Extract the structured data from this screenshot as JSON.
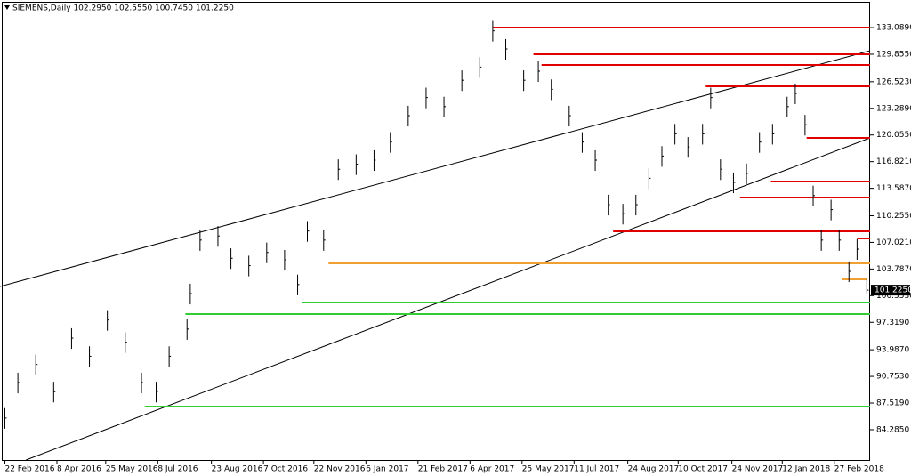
{
  "chart_data": {
    "type": "ohlc",
    "title": "SIEMENS,Daily  102.2950 102.5550 100.7450 101.2250",
    "x": [
      3,
      11,
      22,
      33,
      44,
      55,
      66,
      77,
      87,
      96,
      104,
      115,
      117,
      123,
      134,
      142,
      153,
      164,
      175,
      183,
      189,
      199,
      208,
      219,
      230,
      240,
      251,
      262,
      273,
      284,
      295,
      303,
      311,
      322,
      331,
      339,
      350,
      358,
      366,
      374,
      383,
      391,
      399,
      407,
      415,
      423,
      432,
      437,
      443,
      451,
      459,
      467,
      475,
      484,
      489,
      495,
      500,
      505,
      511,
      516,
      522,
      527,
      533
    ],
    "high": [
      86.9,
      91.2,
      93.4,
      90.1,
      96.6,
      94.4,
      98.8,
      96.1,
      91.2,
      90.1,
      94.4,
      97.7,
      102,
      108.5,
      109,
      106.3,
      105.4,
      107,
      106.1,
      103.1,
      109.6,
      108.5,
      117.1,
      117.7,
      118.2,
      120.4,
      123.6,
      125.8,
      124.7,
      127.9,
      129.5,
      133.9,
      131.7,
      127.9,
      129,
      126.8,
      123.6,
      120.4,
      118.2,
      112.8,
      111.7,
      112.8,
      116,
      118.7,
      121.4,
      119.8,
      121.4,
      125.8,
      117.1,
      115.5,
      116.6,
      120.4,
      121.4,
      124.7,
      126.3,
      122.5,
      113.9,
      108.5,
      112.2,
      108.5,
      104.7,
      107.4,
      102.555
    ],
    "low": [
      84.4,
      88.7,
      90.9,
      87.6,
      94.1,
      91.9,
      96.3,
      93.6,
      88.7,
      87.6,
      91.9,
      95.2,
      99.5,
      106,
      106.5,
      103.8,
      102.9,
      104.5,
      103.6,
      100.6,
      107.1,
      106,
      114.6,
      115.2,
      115.7,
      117.9,
      121.1,
      123.3,
      122.2,
      125.4,
      127,
      131.4,
      129.2,
      125.4,
      126.5,
      124.3,
      121.1,
      117.9,
      115.7,
      110.3,
      109.2,
      110.3,
      113.5,
      116.2,
      118.9,
      117.3,
      118.9,
      123.3,
      114.6,
      113,
      114.1,
      117.9,
      118.9,
      122.2,
      123.8,
      120,
      111.4,
      106,
      109.7,
      106,
      102.2,
      104.9,
      100.745
    ],
    "close": [
      85.7,
      90,
      92.2,
      88.9,
      95.4,
      93.2,
      97.6,
      94.9,
      90,
      88.9,
      93.2,
      96.5,
      100.8,
      107.3,
      107.8,
      105.1,
      104.2,
      105.8,
      104.9,
      101.9,
      108.4,
      107.3,
      115.9,
      116.5,
      117,
      119.2,
      122.4,
      124.6,
      123.5,
      126.7,
      128.3,
      132.7,
      130.5,
      126.7,
      127.8,
      125.6,
      122.4,
      119.2,
      117,
      111.6,
      110.5,
      111.6,
      114.8,
      117.5,
      120.2,
      118.6,
      120.2,
      124.6,
      115.9,
      114.3,
      115.4,
      119.2,
      120.2,
      123.5,
      125.1,
      121.3,
      112.7,
      107.3,
      111,
      107.3,
      103.5,
      106.2,
      101.225
    ],
    "color": "#000000",
    "xlim": [
      0,
      535
    ],
    "ylim": [
      80.61,
      136.44
    ],
    "xticks": [
      {
        "value": 3,
        "label": "22 Feb 2016"
      },
      {
        "value": 35,
        "label": "8 Apr 2016"
      },
      {
        "value": 65,
        "label": "25 May 2016"
      },
      {
        "value": 97,
        "label": "8 Jul 2016"
      },
      {
        "value": 130,
        "label": "23 Aug 2016"
      },
      {
        "value": 162,
        "label": "7 Oct 2016"
      },
      {
        "value": 193,
        "label": "22 Nov 2016"
      },
      {
        "value": 225,
        "label": "6 Jan 2017"
      },
      {
        "value": 257,
        "label": "21 Feb 2017"
      },
      {
        "value": 289,
        "label": "6 Apr 2017"
      },
      {
        "value": 321,
        "label": "25 May 2017"
      },
      {
        "value": 353,
        "label": "11 Jul 2017"
      },
      {
        "value": 386,
        "label": "24 Aug 2017"
      },
      {
        "value": 417,
        "label": "10 Oct 2017"
      },
      {
        "value": 450,
        "label": "24 Nov 2017"
      },
      {
        "value": 481,
        "label": "12 Jan 2018"
      },
      {
        "value": 513,
        "label": "27 Feb 2018"
      }
    ],
    "yticks": [
      {
        "value": 133.089,
        "label": "133.0890"
      },
      {
        "value": 129.855,
        "label": "129.8550"
      },
      {
        "value": 126.523,
        "label": "126.5230"
      },
      {
        "value": 123.289,
        "label": "123.2890"
      },
      {
        "value": 120.055,
        "label": "120.0550"
      },
      {
        "value": 116.821,
        "label": "116.8210"
      },
      {
        "value": 113.587,
        "label": "113.5870"
      },
      {
        "value": 110.255,
        "label": "110.2550"
      },
      {
        "value": 107.021,
        "label": "107.0210"
      },
      {
        "value": 103.787,
        "label": "103.7870"
      },
      {
        "value": 100.553,
        "label": "100.5530"
      },
      {
        "value": 97.319,
        "label": "97.3190"
      },
      {
        "value": 93.987,
        "label": "93.9870"
      },
      {
        "value": 90.753,
        "label": "90.7530"
      },
      {
        "value": 87.519,
        "label": "87.5190"
      },
      {
        "value": 84.285,
        "label": "84.2850"
      }
    ],
    "last_price": {
      "value": 101.225,
      "label": "101.2250"
    },
    "levels": [
      {
        "price": 133.089,
        "from": 303,
        "to": 535,
        "color": "#e00000"
      },
      {
        "price": 129.85,
        "from": 328,
        "to": 535,
        "color": "#e00000"
      },
      {
        "price": 128.56,
        "from": 333,
        "to": 535,
        "color": "#e00000"
      },
      {
        "price": 125.96,
        "from": 434,
        "to": 535,
        "color": "#e00000"
      },
      {
        "price": 119.7,
        "from": 496,
        "to": 535,
        "color": "#e00000"
      },
      {
        "price": 114.41,
        "from": 474,
        "to": 535,
        "color": "#e00000"
      },
      {
        "price": 112.47,
        "from": 455,
        "to": 535,
        "color": "#e00000"
      },
      {
        "price": 108.36,
        "from": 377,
        "to": 535,
        "color": "#e00000"
      },
      {
        "price": 107.5,
        "from": 527,
        "to": 535,
        "color": "#e00000"
      },
      {
        "price": 104.47,
        "from": 202,
        "to": 535,
        "color": "#f0a030"
      },
      {
        "price": 102.53,
        "from": 518,
        "to": 533,
        "color": "#f0a030"
      },
      {
        "price": 99.72,
        "from": 186,
        "to": 535,
        "color": "#33cc33"
      },
      {
        "price": 98.32,
        "from": 114,
        "to": 535,
        "color": "#33cc33"
      },
      {
        "price": 87.09,
        "from": 89,
        "to": 535,
        "color": "#33cc33"
      }
    ],
    "trendlines": [
      {
        "x": [
          0,
          535
        ],
        "y": [
          101.67,
          130.28
        ],
        "color": "#000000"
      },
      {
        "x": [
          16,
          535
        ],
        "y": [
          80.61,
          119.7
        ],
        "color": "#000000"
      }
    ]
  }
}
